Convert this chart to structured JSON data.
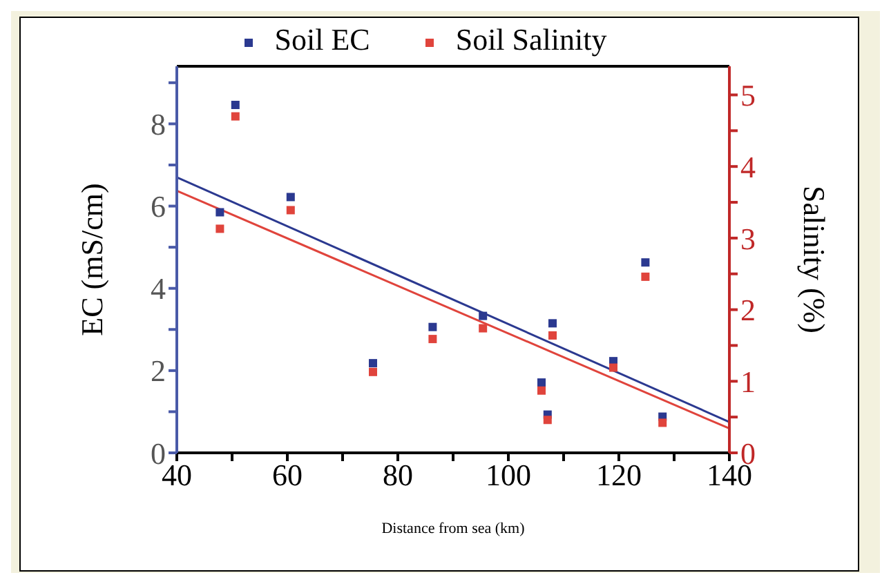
{
  "chart_data": {
    "type": "scatter",
    "xlabel": "Distance from sea (km)",
    "ylabel": "EC (mS/cm)",
    "y2label": "Salinity (%)",
    "xlim": [
      40,
      140
    ],
    "xticks": [
      40,
      {
        "value": 50,
        "label": null
      },
      60,
      {
        "value": 70,
        "label": null
      },
      80,
      {
        "value": 90,
        "label": null
      },
      100,
      {
        "value": 110,
        "label": null
      },
      120,
      {
        "value": 130,
        "label": null
      },
      140
    ],
    "ylim": [
      0,
      9.4
    ],
    "yticks": [
      0,
      {
        "value": 1,
        "label": null
      },
      2,
      {
        "value": 3,
        "label": null
      },
      4,
      {
        "value": 5,
        "label": null
      },
      6,
      {
        "value": 7,
        "label": null
      },
      8,
      {
        "value": 9,
        "label": null
      }
    ],
    "y2lim": [
      0,
      5.4
    ],
    "y2ticks": [
      0,
      {
        "value": 0.5,
        "label": null
      },
      1,
      {
        "value": 1.5,
        "label": null
      },
      2,
      {
        "value": 2.5,
        "label": null
      },
      3,
      {
        "value": 3.5,
        "label": null
      },
      4,
      {
        "value": 4.5,
        "label": null
      },
      5
    ],
    "legend": "top",
    "series": [
      {
        "name": "Soil EC",
        "color": "#2b3990",
        "marker": "square",
        "x": [
          47.8,
          50.6,
          60.6,
          75.5,
          86.3,
          95.4,
          106,
          107.1,
          108,
          119,
          124.8,
          127.9
        ],
        "values": [
          5.85,
          8.46,
          6.22,
          2.18,
          3.06,
          3.33,
          1.71,
          0.93,
          3.15,
          2.23,
          4.63,
          0.88
        ]
      },
      {
        "name": "Soil Salinity",
        "color": "#e0443c",
        "marker": "square",
        "axis": "y2",
        "x": [
          47.8,
          50.6,
          60.6,
          75.5,
          86.3,
          95.4,
          106,
          107.1,
          108,
          119,
          124.8,
          127.9
        ],
        "values": [
          3.13,
          4.7,
          3.39,
          1.13,
          1.59,
          1.74,
          0.87,
          0.46,
          1.64,
          1.19,
          2.46,
          0.42
        ]
      },
      {
        "type": "line",
        "color": "#2b3990",
        "x": [
          40,
          140
        ],
        "values": [
          6.7,
          0.75
        ]
      },
      {
        "type": "line",
        "color": "#e0443c",
        "axis": "y2",
        "x": [
          40,
          140
        ],
        "values": [
          3.66,
          0.34
        ]
      }
    ]
  }
}
